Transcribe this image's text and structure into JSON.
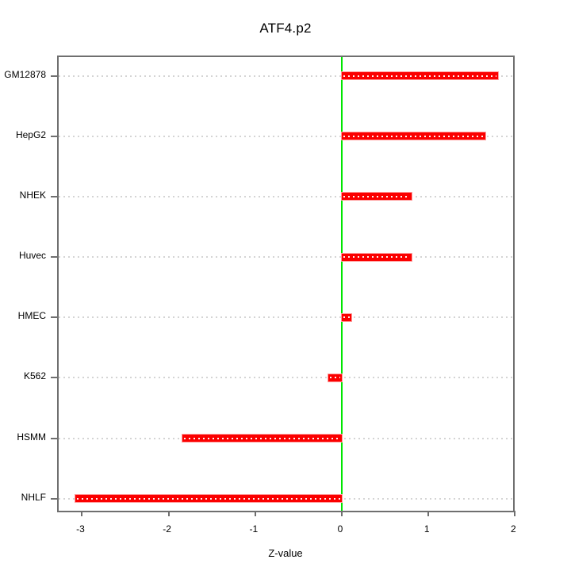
{
  "chart_data": {
    "type": "bar",
    "orientation": "horizontal",
    "title": "ATF4.p2",
    "xlabel": "Z-value",
    "categories": [
      "GM12878",
      "HepG2",
      "NHEK",
      "Huvec",
      "HMEC",
      "K562",
      "HSMM",
      "NHLF"
    ],
    "values": [
      1.8,
      1.66,
      0.81,
      0.81,
      0.11,
      -0.16,
      -1.84,
      -3.08
    ],
    "x_ticks": [
      -3,
      -2,
      -1,
      0,
      1,
      2
    ],
    "xlim": [
      -3.27,
      2.015
    ],
    "grid": "horizontal-dotted",
    "legend": "none",
    "bar_color": "#fb0000",
    "zero_line_color": "#00e600",
    "gridline_color": "#d4d4d4",
    "box_color": "#6f6f6f"
  }
}
